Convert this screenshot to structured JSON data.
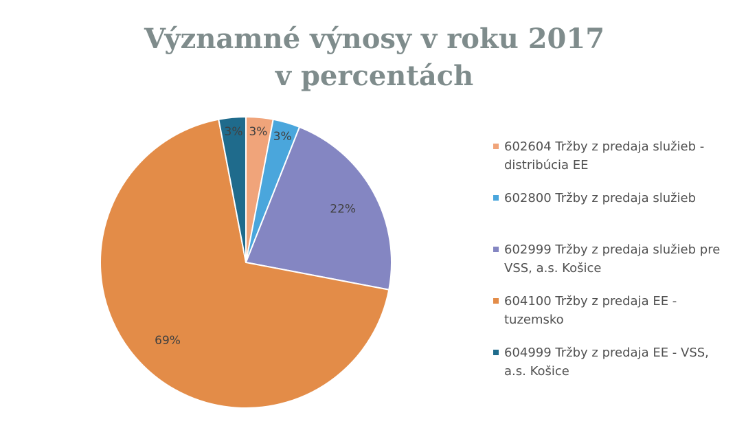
{
  "chart_data": {
    "type": "pie",
    "title": "Významné výnosy v roku 2017 v percentách",
    "categories": [
      "602604 Tržby z predaja služieb - distribúcia EE",
      "602800 Tržby z predaja služieb",
      "602999 Tržby z predaja služieb pre VSS, a.s. Košice",
      "604100 Tržby z predaja EE - tuzemsko",
      "604999 Tržby z predaja EE - VSS, a.s. Košice"
    ],
    "values": [
      3,
      3,
      22,
      69,
      3
    ],
    "value_labels": [
      "3%",
      "3%",
      "22%",
      "69%",
      "3%"
    ],
    "colors": [
      "#f0a47a",
      "#4aa6dc",
      "#8486c2",
      "#e38c48",
      "#1f6b8c"
    ],
    "legend": "right"
  }
}
